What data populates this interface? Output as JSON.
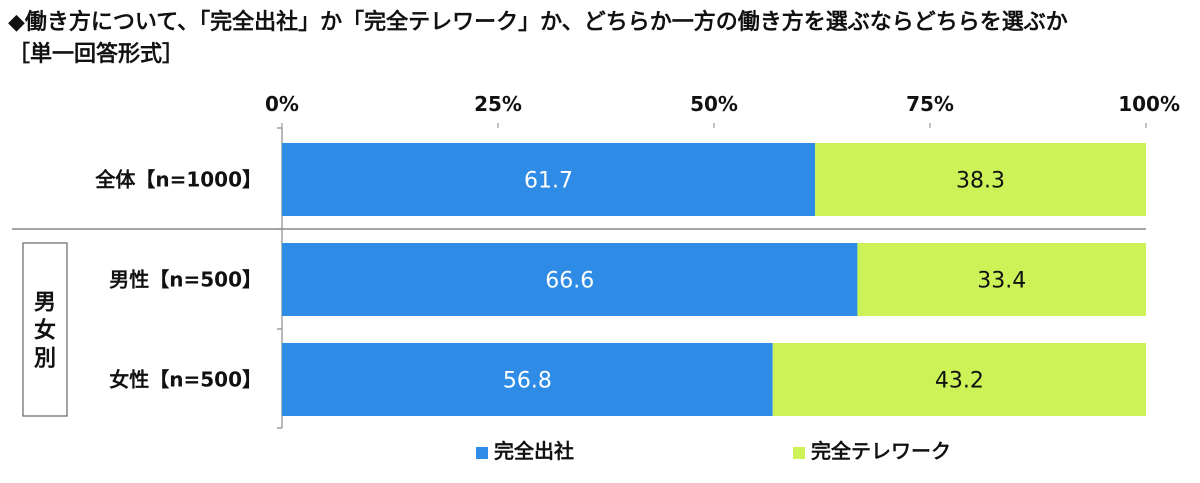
{
  "chart_data": {
    "type": "bar",
    "stacked": true,
    "orientation": "horizontal",
    "title": "◆働き方について、「完全出社」か「完全テレワーク」か、どちらか一方の働き方を選ぶならどちらを選ぶか",
    "subtitle": "［単一回答形式］",
    "categories": [
      "全体【n=1000】",
      "男性【n=500】",
      "女性【n=500】"
    ],
    "group_label": "男女別",
    "series": [
      {
        "name": "完全出社",
        "values": [
          61.7,
          66.6,
          56.8
        ],
        "color": "#2E8CE6",
        "label_color": "#ffffff"
      },
      {
        "name": "完全テレワーク",
        "values": [
          38.3,
          33.4,
          43.2
        ],
        "color": "#CCF257",
        "label_color": "#111111"
      }
    ],
    "xlim": [
      0,
      100
    ],
    "xticks": [
      0,
      25,
      50,
      75,
      100
    ],
    "tick_suffix": "%",
    "legend_position": "bottom"
  }
}
